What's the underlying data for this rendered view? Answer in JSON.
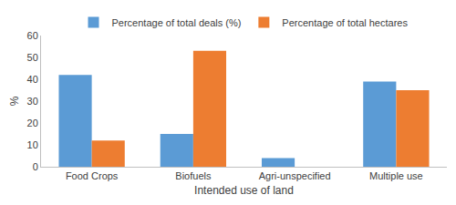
{
  "chart_data": {
    "type": "bar",
    "categories": [
      "Food Crops",
      "Biofuels",
      "Agri-unspecified",
      "Multiple use"
    ],
    "series": [
      {
        "name": "Percentage of total deals (%)",
        "color": "#5b9bd5",
        "values": [
          42,
          15,
          4,
          39
        ]
      },
      {
        "name": "Percentage of total hectares",
        "color": "#ed7d31",
        "values": [
          12,
          53,
          0,
          35
        ]
      }
    ],
    "x_label": "Intended use of land",
    "y_label": "%",
    "ylim": [
      0,
      60
    ],
    "yticks": [
      0,
      10,
      20,
      30,
      40,
      50,
      60
    ],
    "grid": false,
    "legend": "top"
  }
}
